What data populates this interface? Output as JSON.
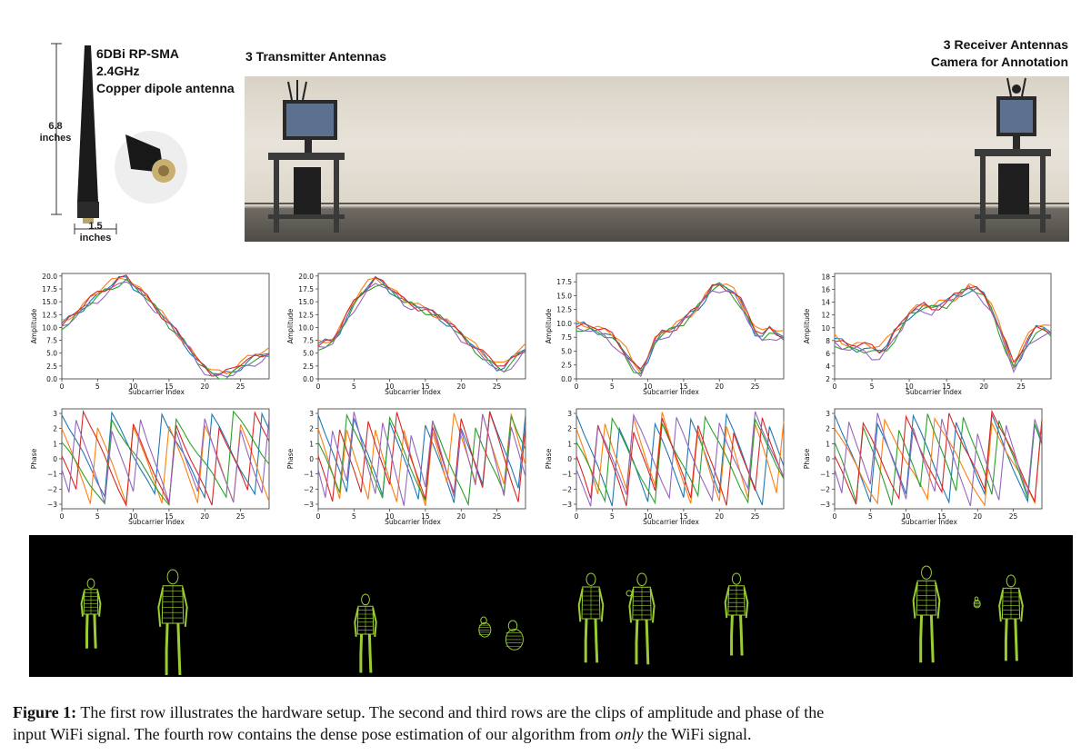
{
  "hardware": {
    "antenna_spec": [
      "6DBi RP-SMA",
      "2.4GHz",
      "Copper dipole antenna"
    ],
    "height_value": "6.8",
    "height_unit": "inches",
    "width_value": "1.5",
    "width_unit": "inches",
    "transmitter_label": "3 Transmitter Antennas",
    "receiver_label_1": "3 Receiver Antennas",
    "receiver_label_2": "Camera for Annotation"
  },
  "colors": {
    "series": [
      "#1f77b4",
      "#ff7f0e",
      "#2ca02c",
      "#d62728",
      "#9467bd",
      "#8c564b"
    ],
    "pose_mesh": "#9acd32",
    "pose_background": "#000000"
  },
  "chart_data": [
    {
      "type": "line",
      "panel": "amplitude-1",
      "xlabel": "Subcarrier Index",
      "ylabel": "Amplitude",
      "xlim": [
        0,
        29
      ],
      "ylim": [
        0,
        20.5
      ],
      "yticks": [
        "0.0",
        "2.5",
        "5.0",
        "7.5",
        "10.0",
        "12.5",
        "15.0",
        "17.5",
        "20.0"
      ],
      "xticks": [
        "0",
        "5",
        "10",
        "15",
        "20",
        "25"
      ],
      "base": [
        10.5,
        11.5,
        12.8,
        14,
        15.2,
        16.2,
        17.3,
        18.2,
        19.2,
        19.7,
        18.2,
        17,
        15.5,
        14,
        12.5,
        10.8,
        9.2,
        7.4,
        5.5,
        3.3,
        2.1,
        1.2,
        0.9,
        1.0,
        1.6,
        2.5,
        3.3,
        4.0,
        4.6,
        5.2
      ]
    },
    {
      "type": "line",
      "panel": "amplitude-2",
      "xlabel": "Subcarrier Index",
      "ylabel": "Amplitude",
      "xlim": [
        0,
        29
      ],
      "ylim": [
        0,
        20.5
      ],
      "yticks": [
        "0.0",
        "2.5",
        "5.0",
        "7.5",
        "10.0",
        "12.5",
        "15.0",
        "17.5",
        "20.0"
      ],
      "xticks": [
        "0",
        "5",
        "10",
        "15",
        "20",
        "25"
      ],
      "base": [
        6.5,
        7,
        7.5,
        9.5,
        12,
        14.5,
        16.5,
        18,
        19.2,
        18.7,
        17.5,
        16.3,
        15,
        14.5,
        14,
        13.5,
        12.8,
        12,
        11,
        9.8,
        8.5,
        7.3,
        6.1,
        4.8,
        3.6,
        2.4,
        2.0,
        3.5,
        5.0,
        6.0
      ]
    },
    {
      "type": "line",
      "panel": "amplitude-3",
      "xlabel": "Subcarrier Index",
      "ylabel": "Amplitude",
      "xlim": [
        0,
        29
      ],
      "ylim": [
        0,
        19
      ],
      "yticks": [
        "0.0",
        "2.5",
        "5.0",
        "7.5",
        "10.0",
        "12.5",
        "15.0",
        "17.5"
      ],
      "xticks": [
        "0",
        "5",
        "10",
        "15",
        "20",
        "25"
      ],
      "base": [
        9.5,
        9.5,
        9.3,
        8.8,
        8.2,
        7.5,
        6.2,
        4.4,
        2.4,
        1.3,
        3.8,
        6.8,
        8.0,
        8.6,
        9.6,
        10.6,
        11.8,
        13.0,
        14.6,
        16.3,
        16.8,
        16.5,
        15.6,
        13.8,
        11.2,
        8.6,
        7.6,
        8.7,
        8.2,
        7.8
      ]
    },
    {
      "type": "line",
      "panel": "amplitude-4",
      "xlabel": "Subcarrier Index",
      "ylabel": "Amplitude",
      "xlim": [
        0,
        29
      ],
      "ylim": [
        2,
        18.5
      ],
      "yticks": [
        "2",
        "4",
        "6",
        "8",
        "10",
        "12",
        "14",
        "16",
        "18"
      ],
      "xticks": [
        "0",
        "5",
        "10",
        "15",
        "20",
        "25"
      ],
      "base": [
        8.0,
        7.5,
        7.2,
        7.0,
        6.8,
        6.5,
        6.3,
        7.2,
        9.0,
        10.5,
        12.2,
        12.8,
        13.2,
        13.0,
        13.6,
        14.0,
        14.8,
        15.5,
        16.2,
        15.8,
        15.0,
        13.2,
        10.2,
        7.0,
        4.0,
        6.0,
        8.0,
        9.6,
        10.0,
        9.5
      ]
    },
    {
      "type": "line",
      "panel": "phase-1",
      "xlabel": "Subcarrier Index",
      "ylabel": "Phase",
      "xlim": [
        0,
        29
      ],
      "ylim": [
        -3.3,
        3.3
      ],
      "yticks": [
        "−3",
        "−2",
        "−1",
        "0",
        "1",
        "2",
        "3"
      ],
      "xticks": [
        "0",
        "5",
        "10",
        "15",
        "20",
        "25"
      ],
      "slopes": [
        -0.9,
        -1.25,
        -0.7,
        -1.05,
        -1.4
      ]
    },
    {
      "type": "line",
      "panel": "phase-2",
      "xlabel": "Subcarrier Index",
      "ylabel": "Phase",
      "xlim": [
        0,
        29
      ],
      "ylim": [
        -3.3,
        3.3
      ],
      "yticks": [
        "−3",
        "−2",
        "−1",
        "0",
        "1",
        "2",
        "3"
      ],
      "xticks": [
        "0",
        "5",
        "10",
        "15",
        "20",
        "25"
      ],
      "slopes": [
        -1.3,
        -1.6,
        -1.1,
        -1.45,
        -1.75
      ]
    },
    {
      "type": "line",
      "panel": "phase-3",
      "xlabel": "Subcarrier Index",
      "ylabel": "Phase",
      "xlim": [
        0,
        29
      ],
      "ylim": [
        -3.3,
        3.3
      ],
      "yticks": [
        "−3",
        "−2",
        "−1",
        "0",
        "1",
        "2",
        "3"
      ],
      "xticks": [
        "0",
        "5",
        "10",
        "15",
        "20",
        "25"
      ],
      "slopes": [
        -1.2,
        -1.5,
        -0.95,
        -1.35,
        -1.1
      ]
    },
    {
      "type": "line",
      "panel": "phase-4",
      "xlabel": "Subcarrier Index",
      "ylabel": "Phase",
      "xlim": [
        0,
        29
      ],
      "ylim": [
        -3.3,
        3.3
      ],
      "yticks": [
        "−3",
        "−2",
        "−1",
        "0",
        "1",
        "2",
        "3"
      ],
      "xticks": [
        "0",
        "5",
        "10",
        "15",
        "20",
        "25"
      ],
      "slopes": [
        -1.15,
        -0.85,
        -1.3,
        -1.0,
        -1.45
      ]
    }
  ],
  "caption": {
    "label": "Figure 1:",
    "text_a": " The first row illustrates the hardware setup. The second and third rows are the clips of amplitude and phase of the",
    "text_b": "input WiFi signal. The fourth row contains the dense pose estimation of our algorithm from ",
    "emphasis": "only",
    "text_c": " the WiFi signal."
  }
}
